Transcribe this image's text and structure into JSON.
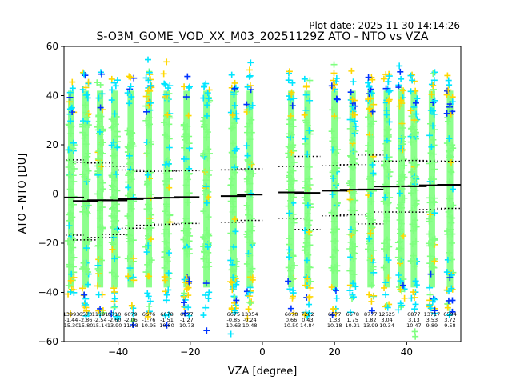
{
  "chart_data": {
    "type": "scatter",
    "title": "S-O3M_GOME_VOD_XX_M03_20251129Z ATO - NTO vs VZA",
    "subtitle": "Plot date: 2025-11-30 14:14:26",
    "xlabel": "VZA [degree]",
    "ylabel": "ATO - NTO [DU]",
    "xlim": [
      -55,
      55
    ],
    "ylim": [
      -60,
      60
    ],
    "xticks": [
      -40,
      -20,
      0,
      20,
      40
    ],
    "yticks": [
      -60,
      -40,
      -20,
      0,
      20,
      40,
      60
    ],
    "grid": false,
    "legend": "none",
    "marker": "+",
    "colormap": "jet",
    "zero_line": 0,
    "colors": {
      "dominant_points": "#7fff7f",
      "mid_points": "#00e5ff",
      "high_points": "#ffd700",
      "outlier_points": "#0033ff",
      "mean_line": "#000000",
      "std_lines": "#000000"
    },
    "bins": [
      {
        "vza": -53.0,
        "count": "13993",
        "mean": "-1.44",
        "std": "15.30"
      },
      {
        "vza": -49.0,
        "count": "6573",
        "mean": "-2.86",
        "std": "15.80"
      },
      {
        "vza": -45.0,
        "count": "11191",
        "mean": "-2.54",
        "std": "15.14"
      },
      {
        "vza": -41.0,
        "count": "8710",
        "mean": "-2.60",
        "std": "13.90"
      },
      {
        "vza": -36.5,
        "count": "6679",
        "mean": "-2.06",
        "std": "11.83"
      },
      {
        "vza": -31.5,
        "count": "6676",
        "mean": "-1.76",
        "std": "10.95"
      },
      {
        "vza": -26.5,
        "count": "6678",
        "mean": "-1.51",
        "std": "10.80"
      },
      {
        "vza": -21.0,
        "count": "6677",
        "mean": "-1.27",
        "std": "10.73"
      },
      {
        "vza": -15.5,
        "count": "",
        "mean": "",
        "std": ""
      },
      {
        "vza": -8.0,
        "count": "6675",
        "mean": "-0.85",
        "std": "10.63"
      },
      {
        "vza": -3.5,
        "count": "13354",
        "mean": "-0.24",
        "std": "10.48"
      },
      {
        "vza": 8.0,
        "count": "6678",
        "mean": "0.66",
        "std": "10.50"
      },
      {
        "vza": 12.5,
        "count": "7262",
        "mean": "0.43",
        "std": "14.84"
      },
      {
        "vza": 20.0,
        "count": "6677",
        "mean": "1.33",
        "std": "10.18"
      },
      {
        "vza": 25.0,
        "count": "6678",
        "mean": "1.75",
        "std": "10.21"
      },
      {
        "vza": 30.0,
        "count": "8777",
        "mean": "1.82",
        "std": "13.99"
      },
      {
        "vza": 34.5,
        "count": "12625",
        "mean": "3.04",
        "std": "10.34"
      },
      {
        "vza": 38.5,
        "count": "",
        "mean": "",
        "std": ""
      },
      {
        "vza": 42.0,
        "count": "6877",
        "mean": "3.13",
        "std": "10.47"
      },
      {
        "vza": 47.0,
        "count": "13717",
        "mean": "3.53",
        "std": "9.89"
      },
      {
        "vza": 52.0,
        "count": "6594",
        "mean": "3.72",
        "std": "9.58"
      }
    ]
  }
}
